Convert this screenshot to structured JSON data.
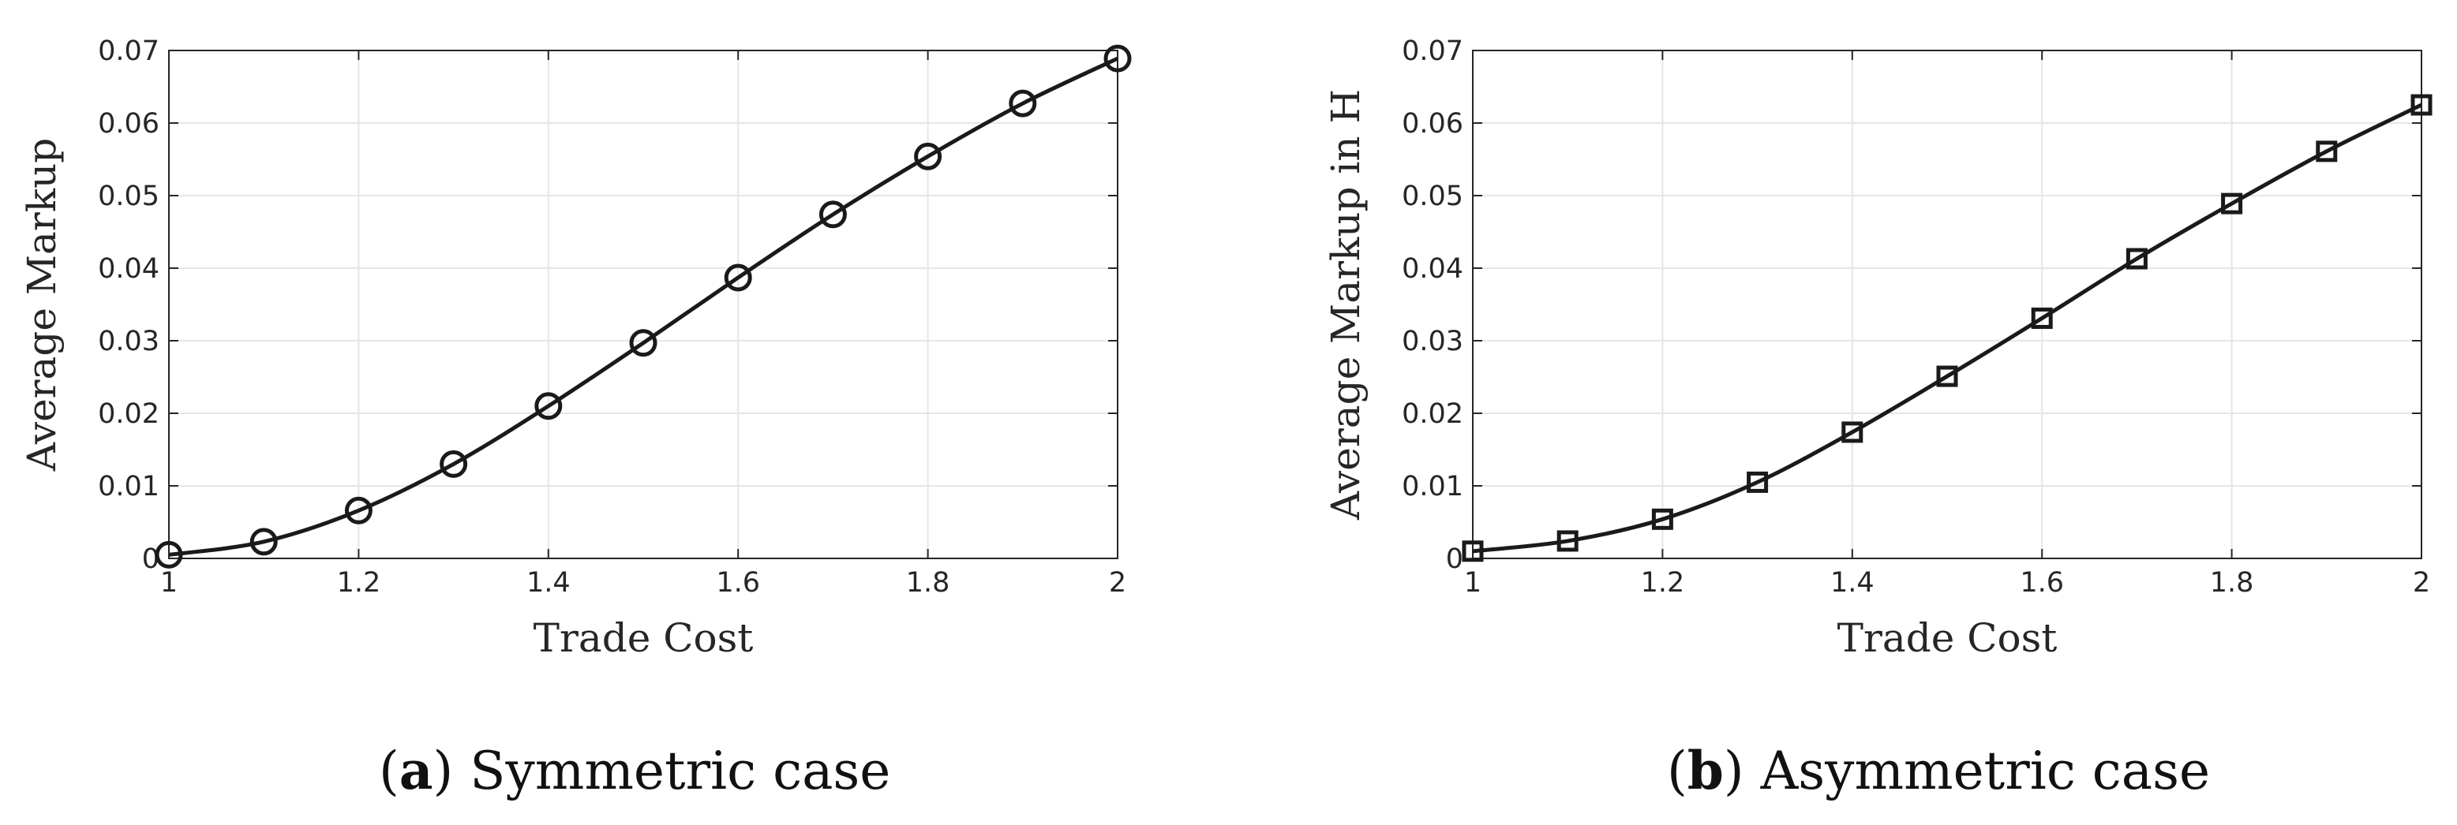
{
  "chart_data": [
    {
      "type": "line",
      "xlabel": "Trade Cost",
      "ylabel": "Average Markup",
      "xlim": [
        1,
        2
      ],
      "ylim": [
        0,
        0.07
      ],
      "xticks": [
        "1",
        "1.2",
        "1.4",
        "1.6",
        "1.8",
        "2"
      ],
      "yticks": [
        "0",
        "0.01",
        "0.02",
        "0.03",
        "0.04",
        "0.05",
        "0.06",
        "0.07"
      ],
      "grid": true,
      "marker": "circle",
      "line_color": "#1a1a1a",
      "x": [
        1.0,
        1.1,
        1.2,
        1.3,
        1.4,
        1.5,
        1.6,
        1.7,
        1.8,
        1.9,
        2.0
      ],
      "y": [
        0.0005,
        0.0023,
        0.0066,
        0.013,
        0.021,
        0.0297,
        0.0387,
        0.0474,
        0.0554,
        0.0627,
        0.0689
      ],
      "caption_letter": "a",
      "caption_text": "Symmetric case"
    },
    {
      "type": "line",
      "xlabel": "Trade Cost",
      "ylabel": "Average Markup in H",
      "xlim": [
        1,
        2
      ],
      "ylim": [
        0,
        0.07
      ],
      "xticks": [
        "1",
        "1.2",
        "1.4",
        "1.6",
        "1.8",
        "2"
      ],
      "yticks": [
        "0",
        "0.01",
        "0.02",
        "0.03",
        "0.04",
        "0.05",
        "0.06",
        "0.07"
      ],
      "grid": true,
      "marker": "square",
      "line_color": "#1a1a1a",
      "x": [
        1.0,
        1.1,
        1.2,
        1.3,
        1.4,
        1.5,
        1.6,
        1.7,
        1.8,
        1.9,
        2.0
      ],
      "y": [
        0.001,
        0.0024,
        0.0054,
        0.0105,
        0.0174,
        0.0251,
        0.0331,
        0.0413,
        0.0489,
        0.0561,
        0.0625
      ],
      "caption_letter": "b",
      "caption_text": "Asymmetric case"
    }
  ]
}
